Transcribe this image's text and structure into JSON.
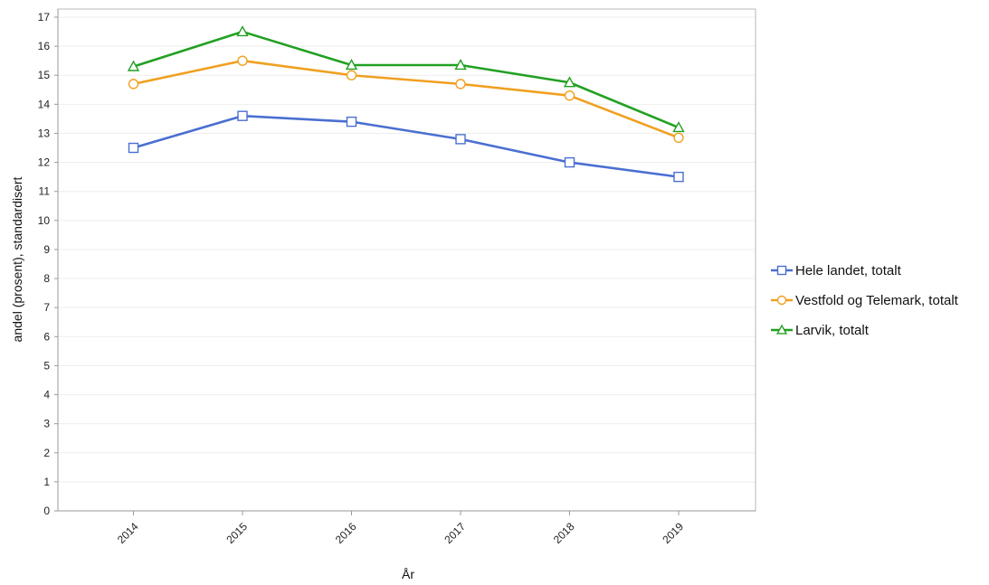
{
  "colors": {
    "series": [
      "#4a6fd1",
      "#f0a020",
      "#22a022"
    ],
    "gridline": "#eeeeee",
    "axis": "#9a9a9a",
    "frame": "#b8b8b8"
  },
  "chart_data": {
    "type": "line",
    "title": "",
    "xlabel": "År",
    "ylabel": "andel (prosent), standardisert",
    "x": [
      "2014",
      "2015",
      "2016",
      "2017",
      "2018",
      "2019"
    ],
    "ylim": [
      0,
      17
    ],
    "yticks": [
      0,
      1,
      2,
      3,
      4,
      5,
      6,
      7,
      8,
      9,
      10,
      11,
      12,
      13,
      14,
      15,
      16,
      17
    ],
    "grid": true,
    "legend_position": "right",
    "series": [
      {
        "name": "Hele landet, totalt",
        "marker": "square",
        "values": [
          12.5,
          13.6,
          13.4,
          12.8,
          12.0,
          11.5
        ]
      },
      {
        "name": "Vestfold og Telemark, totalt",
        "marker": "circle",
        "values": [
          14.7,
          15.5,
          15.0,
          14.7,
          14.3,
          12.85
        ]
      },
      {
        "name": "Larvik, totalt",
        "marker": "triangle",
        "values": [
          15.3,
          16.5,
          15.35,
          15.35,
          14.75,
          13.2
        ]
      }
    ]
  }
}
